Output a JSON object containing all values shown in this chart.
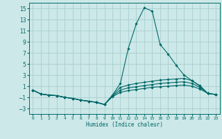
{
  "xlabel": "Humidex (Indice chaleur)",
  "bg_color": "#cce8e8",
  "grid_color": "#aacece",
  "line_color": "#006868",
  "xlim": [
    -0.5,
    23.5
  ],
  "ylim": [
    -4,
    16
  ],
  "xticks": [
    0,
    1,
    2,
    3,
    4,
    5,
    6,
    7,
    8,
    9,
    10,
    11,
    12,
    13,
    14,
    15,
    16,
    17,
    18,
    19,
    20,
    21,
    22,
    23
  ],
  "yticks": [
    -3,
    -1,
    1,
    3,
    5,
    7,
    9,
    11,
    13,
    15
  ],
  "lines": [
    {
      "x": [
        0,
        1,
        2,
        3,
        4,
        5,
        6,
        7,
        8,
        9,
        10,
        11,
        12,
        13,
        14,
        15,
        16,
        17,
        18,
        19,
        20,
        21,
        22,
        23
      ],
      "y": [
        0.3,
        -0.4,
        -0.6,
        -0.7,
        -1.0,
        -1.2,
        -1.5,
        -1.7,
        -1.9,
        -2.3,
        -0.6,
        1.5,
        7.8,
        12.2,
        15.1,
        14.5,
        8.5,
        6.8,
        4.8,
        3.0,
        2.0,
        1.0,
        -0.3,
        -0.5
      ]
    },
    {
      "x": [
        0,
        1,
        2,
        3,
        4,
        5,
        6,
        7,
        8,
        9,
        10,
        11,
        12,
        13,
        14,
        15,
        16,
        17,
        18,
        19,
        20,
        21,
        22,
        23
      ],
      "y": [
        0.3,
        -0.4,
        -0.6,
        -0.7,
        -1.0,
        -1.2,
        -1.5,
        -1.7,
        -1.9,
        -2.3,
        -0.7,
        0.8,
        1.2,
        1.5,
        1.7,
        1.9,
        2.1,
        2.2,
        2.3,
        2.4,
        2.0,
        1.1,
        -0.3,
        -0.5
      ]
    },
    {
      "x": [
        0,
        1,
        2,
        3,
        4,
        5,
        6,
        7,
        8,
        9,
        10,
        11,
        12,
        13,
        14,
        15,
        16,
        17,
        18,
        19,
        20,
        21,
        22,
        23
      ],
      "y": [
        0.3,
        -0.4,
        -0.6,
        -0.7,
        -1.0,
        -1.2,
        -1.5,
        -1.7,
        -1.9,
        -2.3,
        -0.8,
        0.3,
        0.7,
        0.9,
        1.1,
        1.3,
        1.5,
        1.6,
        1.7,
        1.8,
        1.5,
        0.8,
        -0.3,
        -0.5
      ]
    },
    {
      "x": [
        0,
        1,
        2,
        3,
        4,
        5,
        6,
        7,
        8,
        9,
        10,
        11,
        12,
        13,
        14,
        15,
        16,
        17,
        18,
        19,
        20,
        21,
        22,
        23
      ],
      "y": [
        0.3,
        -0.4,
        -0.6,
        -0.7,
        -1.0,
        -1.2,
        -1.5,
        -1.7,
        -1.9,
        -2.3,
        -0.9,
        -0.1,
        0.2,
        0.4,
        0.6,
        0.8,
        0.9,
        1.0,
        1.1,
        1.2,
        1.0,
        0.5,
        -0.3,
        -0.5
      ]
    }
  ]
}
